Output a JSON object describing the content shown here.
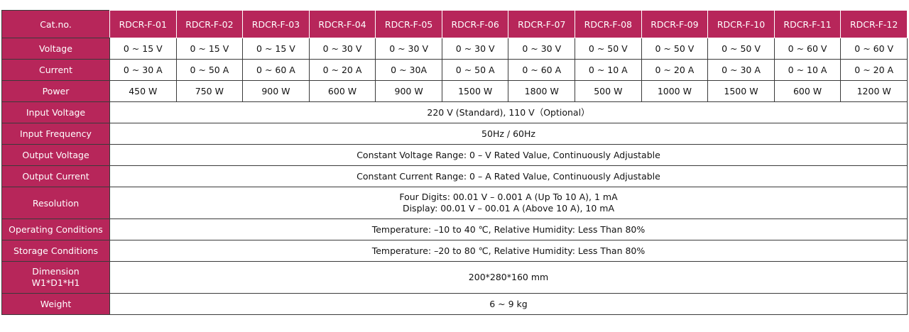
{
  "header": {
    "label": "Cat.no.",
    "models": [
      "RDCR-F-01",
      "RDCR-F-02",
      "RDCR-F-03",
      "RDCR-F-04",
      "RDCR-F-05",
      "RDCR-F-06",
      "RDCR-F-07",
      "RDCR-F-08",
      "RDCR-F-09",
      "RDCR-F-10",
      "RDCR-F-11",
      "RDCR-F-12"
    ]
  },
  "per_model_rows": [
    {
      "label": "Voltage",
      "values": [
        "0 ~ 15 V",
        "0 ~ 15 V",
        "0 ~ 15 V",
        "0 ~ 30 V",
        "0 ~ 30 V",
        "0 ~ 30 V",
        "0 ~ 30 V",
        "0 ~ 50 V",
        "0 ~ 50 V",
        "0 ~ 50 V",
        "0 ~ 60 V",
        "0 ~ 60 V"
      ]
    },
    {
      "label": "Current",
      "values": [
        "0 ~ 30 A",
        "0 ~ 50 A",
        "0 ~ 60 A",
        "0 ~ 20 A",
        "0 ~ 30A",
        "0 ~ 50 A",
        "0 ~ 60 A",
        "0 ~ 10 A",
        "0 ~ 20 A",
        "0 ~ 30 A",
        "0 ~ 10 A",
        "0 ~ 20 A"
      ]
    },
    {
      "label": "Power",
      "values": [
        "450 W",
        "750 W",
        "900 W",
        "600 W",
        "900 W",
        "1500 W",
        "1800 W",
        "500 W",
        "1000 W",
        "1500 W",
        "600 W",
        "1200 W"
      ]
    }
  ],
  "shared_rows": [
    {
      "label": "Input Voltage",
      "lines": [
        "220 V (Standard), 110 V（Optional）"
      ]
    },
    {
      "label": "Input Frequency",
      "lines": [
        "50Hz / 60Hz"
      ]
    },
    {
      "label": "Output Voltage",
      "lines": [
        "Constant Voltage Range: 0 – V  Rated  Value, Continuously Adjustable"
      ]
    },
    {
      "label": "Output Current",
      "lines": [
        "Constant Current Range: 0 – A  Rated  Value, Continuously Adjustable"
      ]
    },
    {
      "label": "Resolution",
      "lines": [
        "Four Digits: 00.01 V – 0.001 A (Up To 10 A), 1 mA",
        "Display: 00.01 V – 00.01 A (Above 10 A), 10 mA"
      ]
    },
    {
      "label": "Operating Conditions",
      "lines": [
        "Temperature: –10 to 40 ℃, Relative Humidity: Less Than 80%"
      ]
    },
    {
      "label": "Storage Conditions",
      "lines": [
        "Temperature: –20 to 80 ℃, Relative Humidity: Less Than 80%"
      ]
    },
    {
      "label_lines": [
        "Dimension",
        "W1*D1*H1"
      ],
      "lines": [
        "200*280*160 mm"
      ]
    },
    {
      "label": "Weight",
      "lines": [
        "6 ~ 9 kg"
      ]
    }
  ],
  "colors": {
    "header_bg": "#b7265a",
    "header_text": "#ffffff",
    "border": "#3a3a3a"
  }
}
